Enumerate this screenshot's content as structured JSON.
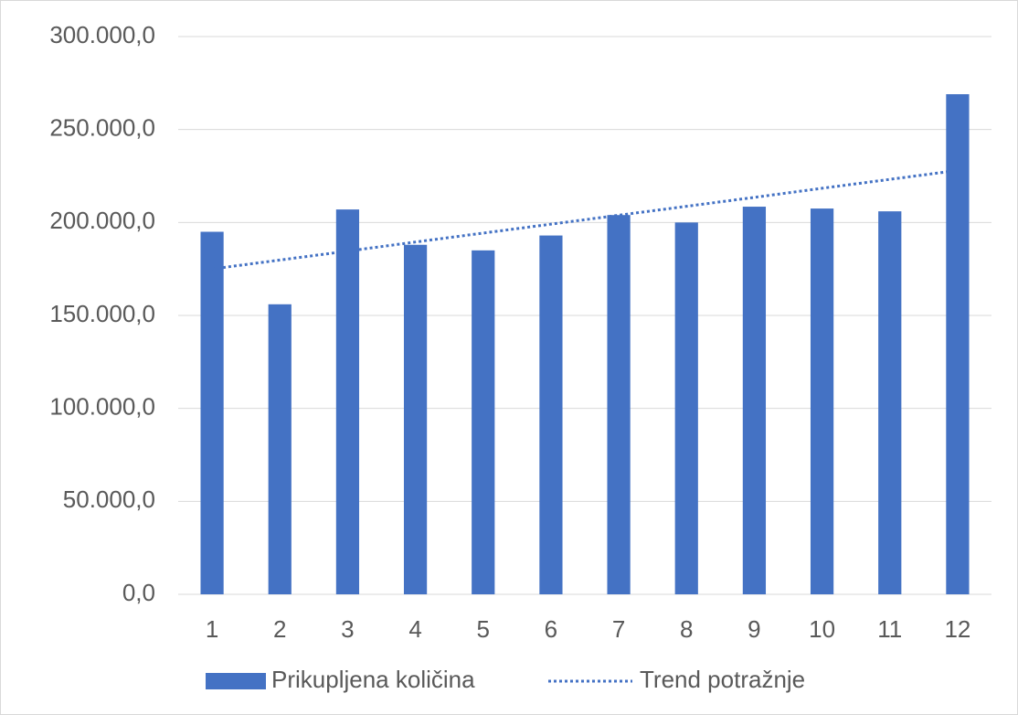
{
  "chart_data": {
    "type": "bar",
    "categories": [
      "1",
      "2",
      "3",
      "4",
      "5",
      "6",
      "7",
      "8",
      "9",
      "10",
      "11",
      "12"
    ],
    "series": [
      {
        "name": "Prikupljena količina",
        "color": "#4472c4",
        "values": [
          195000,
          156000,
          207000,
          188000,
          185000,
          193000,
          204000,
          200000,
          208500,
          207500,
          206000,
          269000
        ]
      },
      {
        "name": "Trend potražnje",
        "color": "#4472c4",
        "line_style": "dotted",
        "values": [
          175000,
          179800,
          184600,
          189500,
          194300,
          199100,
          203900,
          208700,
          213500,
          218400,
          223200,
          228000
        ]
      }
    ],
    "ylim": [
      0,
      300000
    ],
    "yticks": [
      {
        "value": 0,
        "label": "0,0"
      },
      {
        "value": 50000,
        "label": "50.000,0"
      },
      {
        "value": 100000,
        "label": "100.000,0"
      },
      {
        "value": 150000,
        "label": "150.000,0"
      },
      {
        "value": 200000,
        "label": "200.000,0"
      },
      {
        "value": 250000,
        "label": "250.000,0"
      },
      {
        "value": 300000,
        "label": "300.000,0"
      }
    ],
    "grid": true,
    "legend": "bottom"
  }
}
